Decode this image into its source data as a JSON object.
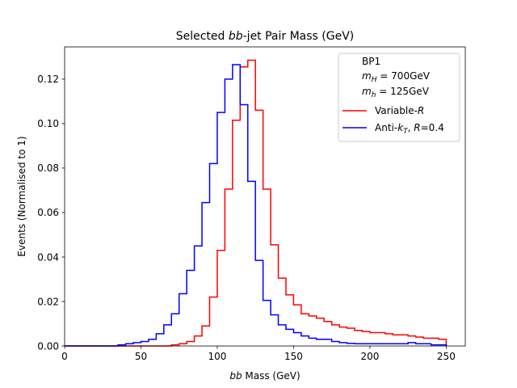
{
  "chart_data": {
    "type": "step-histogram",
    "title_pre": "Selected ",
    "title_italic": "bb",
    "title_post": "-jet Pair Mass (GeV)",
    "xlabel_italic": "bb",
    "xlabel_post": " Mass (GeV)",
    "ylabel": "Events (Normalised to 1)",
    "xlim": [
      0,
      262.5
    ],
    "ylim": [
      0,
      0.1345
    ],
    "xticks": [
      0,
      50,
      100,
      150,
      200,
      250
    ],
    "xtick_labels": [
      "0",
      "50",
      "100",
      "150",
      "200",
      "250"
    ],
    "yticks": [
      0,
      0.02,
      0.04,
      0.06,
      0.08,
      0.1,
      0.12
    ],
    "ytick_labels": [
      "0.00",
      "0.02",
      "0.04",
      "0.06",
      "0.08",
      "0.10",
      "0.12"
    ],
    "bin_start": 0,
    "bin_width": 5,
    "legend": {
      "position": "upper right",
      "header": [
        "BP1",
        "mH = 700GeV",
        "mh = 125GeV"
      ],
      "header_text": {
        "line1": "BP1",
        "line2_sym": "m",
        "line2_sub": "H",
        "line2_rest": " = 700GeV",
        "line3_sym": "m",
        "line3_sub": "h",
        "line3_rest": " = 125GeV"
      }
    },
    "series": [
      {
        "name": "Variable-R",
        "label_pre": "Variable-",
        "label_italic": "R",
        "color": "#ff0000",
        "values": [
          0,
          0,
          0,
          0,
          0,
          0,
          0,
          0,
          0,
          0,
          0,
          0,
          0,
          0,
          0.0005,
          0.001,
          0.002,
          0.0045,
          0.009,
          0.022,
          0.043,
          0.0705,
          0.1015,
          0.1255,
          0.1285,
          0.106,
          0.0705,
          0.0455,
          0.0305,
          0.023,
          0.0185,
          0.0145,
          0.0135,
          0.0125,
          0.011,
          0.0095,
          0.0085,
          0.008,
          0.007,
          0.0065,
          0.006,
          0.006,
          0.0055,
          0.005,
          0.005,
          0.0045,
          0.004,
          0.0035,
          0.0035,
          0.003
        ]
      },
      {
        "name": "Anti-kT, R=0.4",
        "label_pre": "Anti-",
        "label_italic": "k",
        "label_sub": "T",
        "label_mid": ", ",
        "label_italic2": "R",
        "label_post": "=0.4",
        "color": "#0000ff",
        "values": [
          0,
          0,
          0,
          0,
          0,
          0,
          0,
          0.0005,
          0.001,
          0.0015,
          0.002,
          0.003,
          0.0055,
          0.0095,
          0.0145,
          0.0235,
          0.034,
          0.045,
          0.0645,
          0.082,
          0.105,
          0.12,
          0.1265,
          0.1085,
          0.074,
          0.0385,
          0.0205,
          0.014,
          0.0095,
          0.0075,
          0.006,
          0.0045,
          0.0035,
          0.003,
          0.003,
          0.002,
          0.0015,
          0.0012,
          0.001,
          0.001,
          0.001,
          0.001,
          0.001,
          0.001,
          0.001,
          0.0015,
          0.001,
          0.001,
          0.0005,
          0.0005
        ]
      }
    ]
  }
}
